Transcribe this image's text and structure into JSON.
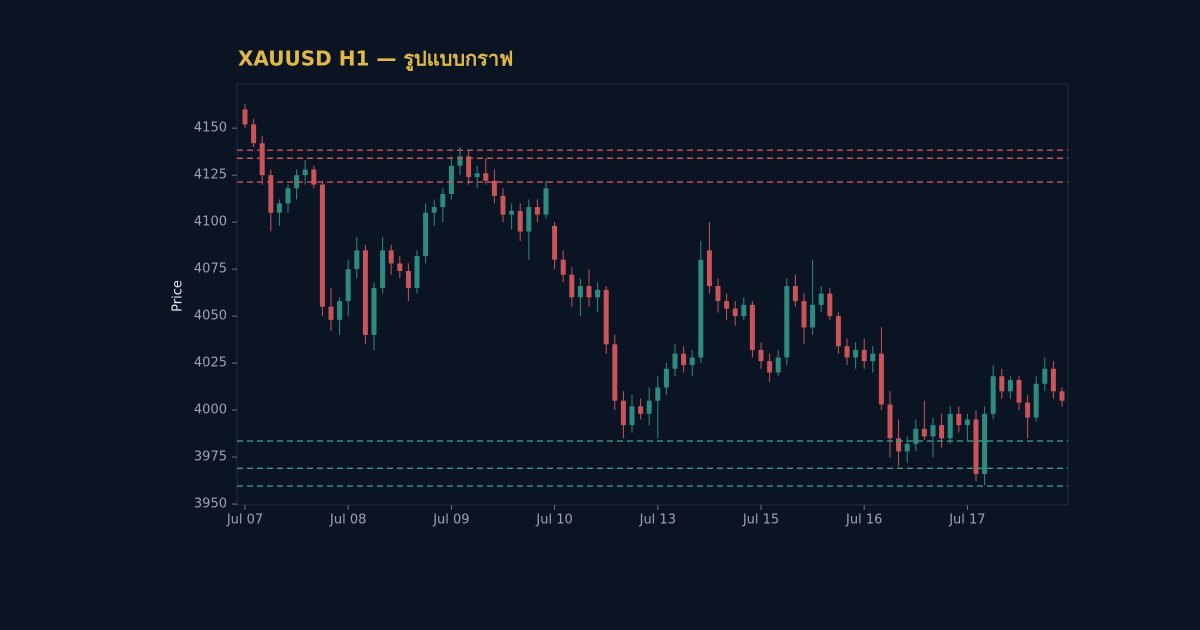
{
  "chart_data": {
    "type": "candlestick",
    "title": "XAUUSD H1 — รูปแบบกราฟ",
    "y_label": "Price",
    "categories": [
      "Jul 07",
      null,
      null,
      null,
      null,
      null,
      null,
      null,
      null,
      null,
      null,
      null,
      "Jul 08",
      null,
      null,
      null,
      null,
      null,
      null,
      null,
      null,
      null,
      null,
      null,
      "Jul 09",
      null,
      null,
      null,
      null,
      null,
      null,
      null,
      null,
      null,
      null,
      null,
      "Jul 10",
      null,
      null,
      null,
      null,
      null,
      null,
      null,
      null,
      null,
      null,
      null,
      "Jul 13",
      null,
      null,
      null,
      null,
      null,
      null,
      null,
      null,
      null,
      null,
      null,
      "Jul 15",
      null,
      null,
      null,
      null,
      null,
      null,
      null,
      null,
      null,
      null,
      null,
      "Jul 16",
      null,
      null,
      null,
      null,
      null,
      null,
      null,
      null,
      null,
      null,
      null,
      "Jul 17",
      null,
      null,
      null,
      null,
      null,
      null,
      null,
      null,
      null,
      null,
      null
    ],
    "open": [
      4160,
      4152,
      4142,
      4125,
      4105,
      4110,
      4118,
      4125,
      4128,
      4120,
      4055,
      4048,
      4058,
      4075,
      4085,
      4040,
      4065,
      4085,
      4078,
      4074,
      4065,
      4082,
      4105,
      4108,
      4115,
      4130,
      4135,
      4124,
      4126,
      4122,
      4114,
      4104,
      4106,
      4095,
      4108,
      4104,
      4098,
      4080,
      4072,
      4060,
      4066,
      4060,
      4064,
      4035,
      4005,
      3992,
      4002,
      3998,
      4005,
      4012,
      4022,
      4030,
      4024,
      4028,
      4085,
      4066,
      4058,
      4054,
      4050,
      4056,
      4032,
      4026,
      4020,
      4028,
      4066,
      4058,
      4044,
      4056,
      4062,
      4050,
      4034,
      4028,
      4032,
      4026,
      4030,
      4003,
      3985,
      3978,
      3982,
      3990,
      3986,
      3992,
      3985,
      3998,
      3992,
      3995,
      3966,
      3998,
      4018,
      4010,
      4016,
      4004,
      3996,
      4014,
      4022,
      4010
    ],
    "high": [
      4163,
      4155,
      4146,
      4128,
      4112,
      4120,
      4128,
      4133,
      4130,
      4122,
      4065,
      4060,
      4080,
      4092,
      4088,
      4068,
      4092,
      4088,
      4082,
      4078,
      4085,
      4110,
      4112,
      4118,
      4135,
      4140,
      4138,
      4130,
      4134,
      4128,
      4118,
      4110,
      4110,
      4112,
      4112,
      4122,
      4100,
      4085,
      4076,
      4070,
      4075,
      4068,
      4066,
      4040,
      4010,
      4008,
      4006,
      4012,
      4018,
      4025,
      4035,
      4034,
      4032,
      4090,
      4100,
      4070,
      4062,
      4058,
      4060,
      4058,
      4036,
      4030,
      4032,
      4070,
      4072,
      4062,
      4080,
      4066,
      4065,
      4052,
      4038,
      4036,
      4038,
      4034,
      4044,
      4010,
      3995,
      3986,
      3995,
      4005,
      3996,
      3998,
      4002,
      4002,
      3998,
      4000,
      4002,
      4024,
      4022,
      4018,
      4018,
      4008,
      4018,
      4028,
      4026,
      4012
    ],
    "low": [
      4150,
      4140,
      4120,
      4095,
      4098,
      4105,
      4112,
      4120,
      4118,
      4050,
      4042,
      4040,
      4050,
      4070,
      4035,
      4032,
      4062,
      4072,
      4070,
      4058,
      4062,
      4078,
      4098,
      4100,
      4112,
      4125,
      4120,
      4118,
      4120,
      4110,
      4100,
      4096,
      4090,
      4080,
      4100,
      4102,
      4075,
      4068,
      4055,
      4050,
      4055,
      4052,
      4030,
      4000,
      3985,
      3988,
      3995,
      3992,
      3985,
      4008,
      4018,
      4020,
      4018,
      4025,
      4062,
      4052,
      4048,
      4045,
      4048,
      4028,
      4022,
      4015,
      4018,
      4024,
      4055,
      4035,
      4040,
      4052,
      4048,
      4030,
      4024,
      4022,
      4022,
      4020,
      4000,
      3975,
      3970,
      3972,
      3978,
      3984,
      3975,
      3980,
      3982,
      3988,
      3984,
      3962,
      3960,
      3995,
      4006,
      4006,
      4000,
      3985,
      3994,
      4010,
      4006,
      4002
    ],
    "close": [
      4152,
      4142,
      4125,
      4105,
      4110,
      4118,
      4125,
      4128,
      4120,
      4055,
      4048,
      4058,
      4075,
      4085,
      4040,
      4065,
      4085,
      4078,
      4074,
      4065,
      4082,
      4105,
      4108,
      4115,
      4130,
      4135,
      4124,
      4126,
      4122,
      4114,
      4104,
      4106,
      4095,
      4108,
      4104,
      4118,
      4080,
      4072,
      4060,
      4066,
      4060,
      4064,
      4035,
      4005,
      3992,
      4002,
      3998,
      4005,
      4012,
      4022,
      4030,
      4024,
      4028,
      4080,
      4066,
      4058,
      4054,
      4050,
      4056,
      4032,
      4026,
      4020,
      4028,
      4066,
      4058,
      4044,
      4056,
      4062,
      4050,
      4034,
      4028,
      4032,
      4026,
      4030,
      4003,
      3985,
      3978,
      3982,
      3990,
      3986,
      3992,
      3985,
      3998,
      3992,
      3995,
      3966,
      3998,
      4018,
      4010,
      4016,
      4004,
      3996,
      4014,
      4022,
      4010,
      4005
    ],
    "up_color": "#2e8b80",
    "down_color": "#c9545a",
    "resistance": [
      4138.3,
      4134,
      4121.3
    ],
    "resistance_color": "#c9545a",
    "support": [
      3983.5,
      3969,
      3959.6
    ],
    "support_color": "#3a9a8e",
    "ylim": [
      3949.5,
      4173.5
    ],
    "yticks": [
      3950,
      3975,
      4000,
      4025,
      4050,
      4075,
      4100,
      4125,
      4150
    ]
  }
}
